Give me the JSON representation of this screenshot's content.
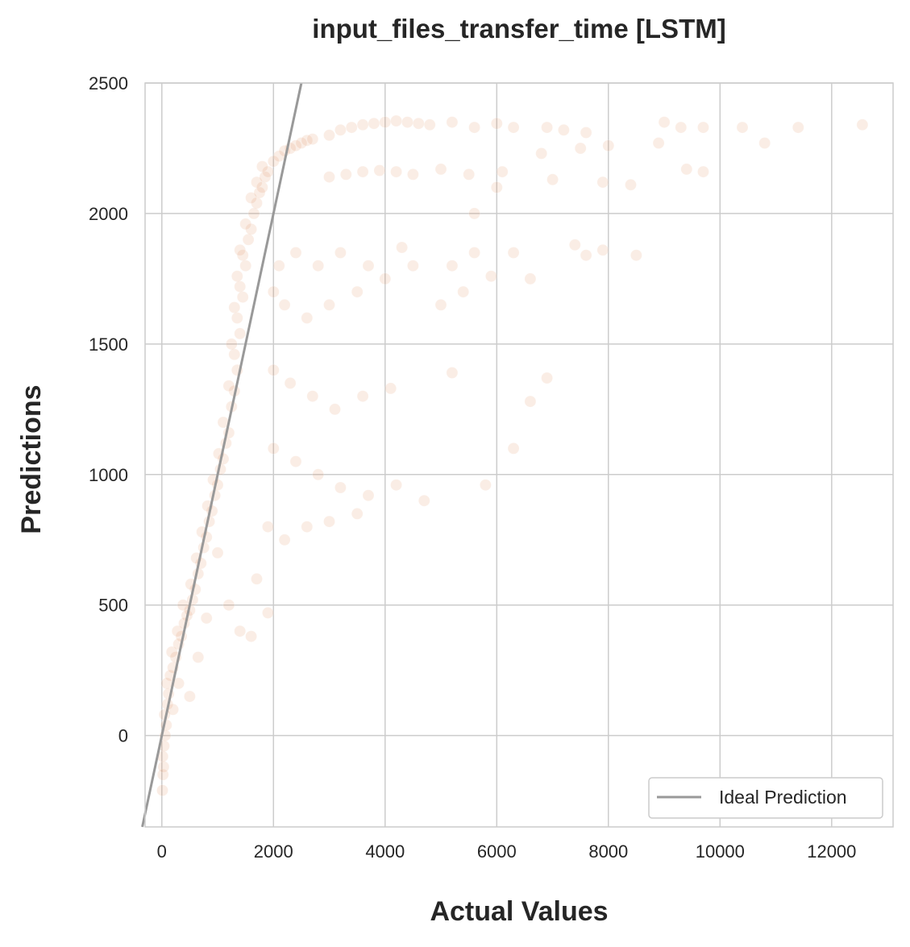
{
  "chart_data": {
    "type": "scatter",
    "title": "input_files_transfer_time [LSTM]",
    "xlabel": "Actual Values",
    "ylabel": "Predictions",
    "xlim": [
      -300,
      13100
    ],
    "ylim": [
      -350,
      2500
    ],
    "xticks": [
      0,
      2000,
      4000,
      6000,
      8000,
      10000,
      12000
    ],
    "yticks": [
      0,
      500,
      1000,
      1500,
      2000,
      2500
    ],
    "xtick_labels": [
      "0",
      "2000",
      "4000",
      "6000",
      "8000",
      "10000",
      "12000"
    ],
    "ytick_labels": [
      "0",
      "500",
      "1000",
      "1500",
      "2000",
      "2500"
    ],
    "grid": true,
    "legend_position": "lower-right",
    "series": [
      {
        "kind": "scatter",
        "color": "#dd8452",
        "alpha": 0.15,
        "points": [
          [
            10,
            -210
          ],
          [
            20,
            -150
          ],
          [
            30,
            -120
          ],
          [
            15,
            -80
          ],
          [
            40,
            -40
          ],
          [
            60,
            0
          ],
          [
            80,
            40
          ],
          [
            50,
            80
          ],
          [
            100,
            120
          ],
          [
            120,
            160
          ],
          [
            90,
            200
          ],
          [
            150,
            230
          ],
          [
            200,
            260
          ],
          [
            250,
            300
          ],
          [
            180,
            320
          ],
          [
            300,
            350
          ],
          [
            350,
            380
          ],
          [
            280,
            400
          ],
          [
            400,
            430
          ],
          [
            450,
            460
          ],
          [
            500,
            480
          ],
          [
            380,
            500
          ],
          [
            550,
            520
          ],
          [
            600,
            560
          ],
          [
            520,
            580
          ],
          [
            650,
            620
          ],
          [
            700,
            660
          ],
          [
            620,
            680
          ],
          [
            750,
            720
          ],
          [
            800,
            760
          ],
          [
            720,
            780
          ],
          [
            850,
            820
          ],
          [
            900,
            860
          ],
          [
            820,
            880
          ],
          [
            950,
            920
          ],
          [
            1000,
            960
          ],
          [
            920,
            980
          ],
          [
            1050,
            1020
          ],
          [
            1100,
            1060
          ],
          [
            1020,
            1080
          ],
          [
            1150,
            1120
          ],
          [
            1200,
            1160
          ],
          [
            1100,
            1200
          ],
          [
            1250,
            1260
          ],
          [
            1300,
            1320
          ],
          [
            1200,
            1340
          ],
          [
            1350,
            1400
          ],
          [
            1300,
            1460
          ],
          [
            1250,
            1500
          ],
          [
            1400,
            1540
          ],
          [
            1350,
            1600
          ],
          [
            1300,
            1640
          ],
          [
            1450,
            1680
          ],
          [
            1400,
            1720
          ],
          [
            1350,
            1760
          ],
          [
            1500,
            1800
          ],
          [
            1450,
            1840
          ],
          [
            1400,
            1860
          ],
          [
            1550,
            1900
          ],
          [
            1600,
            1940
          ],
          [
            1500,
            1960
          ],
          [
            1650,
            2000
          ],
          [
            1700,
            2040
          ],
          [
            1600,
            2060
          ],
          [
            1750,
            2080
          ],
          [
            1800,
            2100
          ],
          [
            1700,
            2120
          ],
          [
            1850,
            2140
          ],
          [
            1900,
            2160
          ],
          [
            1800,
            2180
          ],
          [
            2000,
            2200
          ],
          [
            2100,
            2220
          ],
          [
            2200,
            2240
          ],
          [
            2300,
            2250
          ],
          [
            2400,
            2260
          ],
          [
            2500,
            2270
          ],
          [
            2600,
            2280
          ],
          [
            2700,
            2285
          ],
          [
            3000,
            2300
          ],
          [
            3200,
            2320
          ],
          [
            3400,
            2330
          ],
          [
            3600,
            2340
          ],
          [
            3800,
            2345
          ],
          [
            4000,
            2350
          ],
          [
            4200,
            2355
          ],
          [
            4400,
            2350
          ],
          [
            4600,
            2345
          ],
          [
            4800,
            2340
          ],
          [
            3000,
            2140
          ],
          [
            3300,
            2150
          ],
          [
            3600,
            2160
          ],
          [
            3900,
            2165
          ],
          [
            4200,
            2160
          ],
          [
            4500,
            2150
          ],
          [
            5200,
            2350
          ],
          [
            5600,
            2330
          ],
          [
            6000,
            2345
          ],
          [
            6300,
            2330
          ],
          [
            6900,
            2330
          ],
          [
            7200,
            2320
          ],
          [
            7600,
            2310
          ],
          [
            8000,
            2260
          ],
          [
            8900,
            2270
          ],
          [
            9000,
            2350
          ],
          [
            9300,
            2330
          ],
          [
            9700,
            2330
          ],
          [
            10400,
            2330
          ],
          [
            10800,
            2270
          ],
          [
            11400,
            2330
          ],
          [
            12550,
            2340
          ],
          [
            5000,
            2170
          ],
          [
            5500,
            2150
          ],
          [
            6100,
            2160
          ],
          [
            7000,
            2130
          ],
          [
            7900,
            2120
          ],
          [
            8400,
            2110
          ],
          [
            9400,
            2170
          ],
          [
            9700,
            2160
          ],
          [
            5600,
            2000
          ],
          [
            6000,
            2100
          ],
          [
            6800,
            2230
          ],
          [
            7500,
            2250
          ],
          [
            5200,
            1800
          ],
          [
            5600,
            1850
          ],
          [
            6300,
            1850
          ],
          [
            7400,
            1880
          ],
          [
            7600,
            1840
          ],
          [
            7900,
            1860
          ],
          [
            8500,
            1840
          ],
          [
            5400,
            1700
          ],
          [
            5900,
            1760
          ],
          [
            6600,
            1750
          ],
          [
            2000,
            1700
          ],
          [
            2200,
            1650
          ],
          [
            2600,
            1600
          ],
          [
            3000,
            1650
          ],
          [
            3500,
            1700
          ],
          [
            4000,
            1750
          ],
          [
            4500,
            1800
          ],
          [
            5000,
            1650
          ],
          [
            2100,
            1800
          ],
          [
            2400,
            1850
          ],
          [
            2800,
            1800
          ],
          [
            3200,
            1850
          ],
          [
            3700,
            1800
          ],
          [
            4300,
            1870
          ],
          [
            2000,
            1400
          ],
          [
            2300,
            1350
          ],
          [
            2700,
            1300
          ],
          [
            3100,
            1250
          ],
          [
            3600,
            1300
          ],
          [
            4100,
            1330
          ],
          [
            5200,
            1390
          ],
          [
            6900,
            1370
          ],
          [
            6600,
            1280
          ],
          [
            2000,
            1100
          ],
          [
            2400,
            1050
          ],
          [
            2800,
            1000
          ],
          [
            3200,
            950
          ],
          [
            3700,
            920
          ],
          [
            4200,
            960
          ],
          [
            4700,
            900
          ],
          [
            5800,
            960
          ],
          [
            6300,
            1100
          ],
          [
            1900,
            800
          ],
          [
            2200,
            750
          ],
          [
            2600,
            800
          ],
          [
            3000,
            820
          ],
          [
            3500,
            850
          ],
          [
            1700,
            600
          ],
          [
            1900,
            470
          ],
          [
            1600,
            380
          ],
          [
            1400,
            400
          ],
          [
            1200,
            500
          ],
          [
            1000,
            700
          ],
          [
            800,
            450
          ],
          [
            650,
            300
          ],
          [
            500,
            150
          ],
          [
            300,
            200
          ],
          [
            200,
            100
          ]
        ]
      },
      {
        "kind": "line",
        "name": "Ideal Prediction",
        "color": "#999999",
        "x": [
          -350,
          2500
        ],
        "y": [
          -350,
          2500
        ]
      }
    ]
  }
}
